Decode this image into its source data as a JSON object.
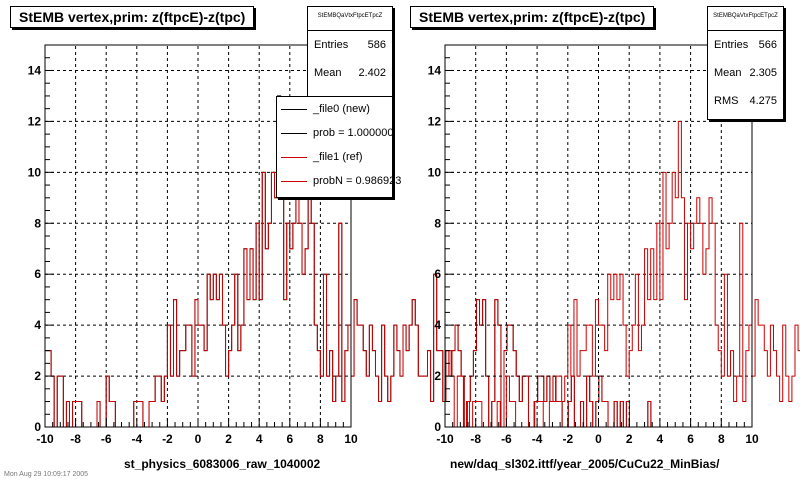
{
  "footer_text": "Mon Aug 29 10:09:17 2005",
  "legend": [
    {
      "label": "_file0 (new)",
      "color": "#000000"
    },
    {
      "label": "prob = 1.000000",
      "color": "#000000"
    },
    {
      "label": "_file1 (ref)",
      "color": "#cc0000"
    },
    {
      "label": "probN = 0.986923",
      "color": "#cc0000"
    }
  ],
  "chart_data": [
    {
      "type": "histogram",
      "title": "StEMB  vertex,prim: z(ftpcE)-z(tpc)",
      "xlabel": "st_physics_6083006_raw_1040002",
      "xlim": [
        -10,
        10
      ],
      "ylim": [
        0,
        15
      ],
      "xticks": [
        -10,
        -8,
        -6,
        -4,
        -2,
        0,
        2,
        4,
        6,
        8,
        10
      ],
      "yticks": [
        0,
        2,
        4,
        6,
        8,
        10,
        12,
        14
      ],
      "grid": true,
      "stats": {
        "name": "StEMBQaVtxFtpcETpcZ",
        "entries": "586",
        "mean": "2.402"
      },
      "stats_labels": {
        "entries": "Entries",
        "mean": "Mean"
      },
      "bin_edges_start": -10,
      "bin_width": 0.2,
      "series": [
        {
          "name": "_file0 (new)",
          "color": "#000000",
          "values": [
            3,
            3,
            2,
            0,
            2,
            2,
            0,
            1,
            0,
            1,
            1,
            1,
            0,
            0,
            0,
            0,
            0,
            1,
            0,
            0,
            2,
            1,
            1,
            0,
            0,
            0,
            0,
            0,
            0,
            1,
            1,
            1,
            0,
            0,
            1,
            1,
            2,
            2,
            1,
            2,
            4,
            2,
            5,
            2,
            3,
            3,
            4,
            4,
            2,
            5,
            4,
            4,
            3,
            6,
            5,
            6,
            5,
            6,
            4,
            2,
            3,
            4,
            6,
            3,
            4,
            7,
            5,
            7,
            5,
            8,
            5,
            10,
            7,
            8,
            10,
            9,
            13,
            9,
            5,
            8,
            7,
            8,
            9,
            8,
            6,
            7,
            9,
            8,
            4,
            3,
            2,
            6,
            2,
            3,
            1,
            2,
            8,
            1,
            3,
            4,
            2,
            5,
            4,
            4,
            3,
            2,
            4,
            3,
            2,
            1,
            4,
            2,
            1,
            2,
            4,
            3,
            2,
            4,
            3,
            4,
            5,
            4,
            2,
            2,
            2,
            3,
            1,
            6,
            3,
            3,
            1,
            3,
            2,
            3,
            4,
            3,
            2,
            0,
            1,
            2,
            3,
            5,
            4,
            5,
            2,
            0,
            1,
            5,
            4,
            0,
            3,
            4,
            4,
            3,
            2,
            1,
            2,
            2,
            0,
            0,
            1,
            2,
            2,
            1,
            2,
            1,
            2,
            1,
            1,
            0,
            0,
            1,
            2,
            0,
            0,
            1,
            0,
            2,
            1,
            0,
            1,
            2,
            1,
            1,
            0,
            0,
            1,
            0,
            1,
            0,
            1,
            0,
            0,
            0,
            0,
            0,
            0,
            1,
            0,
            0
          ]
        },
        {
          "name": "_file1 (ref)",
          "color": "#cc0000",
          "values": [
            3,
            3,
            2,
            0,
            2,
            2,
            0,
            1,
            0,
            1,
            1,
            1,
            0,
            0,
            0,
            0,
            0,
            1,
            0,
            0,
            2,
            1,
            1,
            0,
            0,
            0,
            0,
            0,
            0,
            1,
            1,
            1,
            0,
            0,
            1,
            1,
            2,
            2,
            1,
            2,
            4,
            2,
            5,
            2,
            3,
            3,
            4,
            4,
            2,
            5,
            4,
            4,
            3,
            6,
            5,
            6,
            5,
            6,
            4,
            2,
            3,
            4,
            6,
            3,
            4,
            7,
            5,
            7,
            5,
            8,
            5,
            10,
            7,
            8,
            10,
            9,
            12,
            9,
            5,
            8,
            7,
            8,
            9,
            8,
            6,
            7,
            9,
            8,
            4,
            3,
            2,
            6,
            2,
            3,
            1,
            2,
            8,
            1,
            3,
            4,
            2,
            5,
            4,
            4,
            3,
            2,
            4,
            3,
            2,
            1,
            4,
            2,
            1,
            2,
            4,
            3,
            2,
            4,
            3,
            4,
            5,
            4,
            2,
            2,
            2,
            3,
            1,
            6,
            3,
            3,
            1,
            3,
            2,
            3,
            4,
            3,
            2,
            0,
            1,
            2,
            3,
            5,
            4,
            5,
            2,
            0,
            1,
            5,
            4,
            0,
            3,
            4,
            4,
            3,
            2,
            1,
            2,
            2,
            0,
            0,
            1,
            2,
            2,
            1,
            2,
            1,
            2,
            1,
            1,
            0,
            0,
            1,
            2,
            0,
            0,
            1,
            0,
            2,
            1,
            0,
            1,
            2,
            1,
            1,
            0,
            0,
            1,
            0,
            1,
            0,
            1,
            0,
            0,
            0,
            0,
            0,
            0,
            1,
            0,
            0
          ]
        }
      ]
    },
    {
      "type": "histogram",
      "title": "StEMB  vertex,prim: z(ftpcE)-z(tpc)",
      "xlabel": "new/daq_sl302.ittf/year_2005/CuCu22_MinBias/",
      "xlim": [
        -10,
        10
      ],
      "ylim": [
        0,
        15
      ],
      "xticks": [
        -10,
        -8,
        -6,
        -4,
        -2,
        0,
        2,
        4,
        6,
        8,
        10
      ],
      "yticks": [
        0,
        2,
        4,
        6,
        8,
        10,
        12,
        14
      ],
      "grid": true,
      "stats": {
        "name": "StEMBQaVtxFtpcETpcZ",
        "entries": "566",
        "mean": "2.305",
        "rms": "4.275"
      },
      "stats_labels": {
        "entries": "Entries",
        "mean": "Mean",
        "rms": "RMS"
      },
      "bin_edges_start": -10,
      "bin_width": 0.2,
      "series": [
        {
          "name": "_file1 (ref)",
          "color": "#cc0000",
          "values": [
            3,
            3,
            2,
            0,
            2,
            2,
            0,
            1,
            0,
            1,
            1,
            1,
            0,
            0,
            0,
            0,
            0,
            1,
            0,
            0,
            2,
            1,
            1,
            0,
            0,
            0,
            0,
            0,
            0,
            1,
            1,
            1,
            0,
            0,
            1,
            1,
            2,
            2,
            1,
            2,
            4,
            2,
            5,
            2,
            3,
            3,
            4,
            4,
            2,
            5,
            4,
            4,
            3,
            6,
            5,
            6,
            5,
            6,
            4,
            2,
            3,
            4,
            6,
            3,
            4,
            7,
            5,
            7,
            5,
            8,
            5,
            10,
            7,
            8,
            10,
            9,
            12,
            9,
            5,
            8,
            7,
            8,
            9,
            8,
            6,
            7,
            9,
            8,
            4,
            3,
            2,
            6,
            2,
            3,
            1,
            2,
            8,
            1,
            3,
            4,
            2,
            5,
            4,
            4,
            3,
            2,
            4,
            3,
            2,
            1,
            4,
            2,
            1,
            2,
            4,
            3,
            2,
            4,
            3,
            4,
            5,
            4,
            2,
            2,
            2,
            3,
            1,
            6,
            3,
            3,
            1,
            3,
            2,
            3,
            4,
            3,
            2,
            0,
            1,
            2,
            3,
            5,
            4,
            5,
            2,
            0,
            1,
            5,
            4,
            0,
            3,
            4,
            4,
            3,
            2,
            1,
            2,
            2,
            0,
            0,
            1,
            2,
            2,
            1,
            2,
            1,
            2,
            1,
            1,
            0,
            0,
            1,
            2,
            0,
            0,
            1,
            0,
            2,
            1,
            0,
            1,
            2,
            1,
            1,
            0,
            0,
            1,
            0,
            1,
            0,
            1,
            0,
            0,
            0,
            0,
            0,
            0,
            1,
            0,
            0
          ]
        }
      ]
    }
  ]
}
